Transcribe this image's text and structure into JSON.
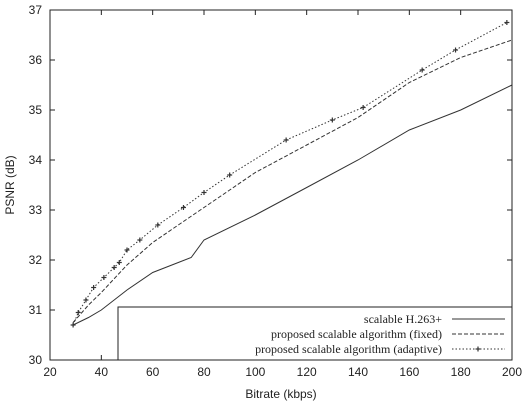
{
  "chart_data": {
    "type": "line",
    "title": "",
    "xlabel": "Bitrate (kbps)",
    "ylabel": "PSNR (dB)",
    "xlim": [
      20,
      200
    ],
    "ylim": [
      30,
      37
    ],
    "xticks": [
      20,
      40,
      60,
      80,
      100,
      120,
      140,
      160,
      180,
      200
    ],
    "yticks": [
      30,
      31,
      32,
      33,
      34,
      35,
      36,
      37
    ],
    "grid": false,
    "legend_position": "bottom-right",
    "series": [
      {
        "name": "scalable H.263+",
        "style": "solid",
        "color": "#333333",
        "x": [
          29,
          35,
          40,
          50,
          60,
          70,
          75,
          80,
          100,
          120,
          140,
          160,
          180,
          200
        ],
        "y": [
          30.7,
          30.85,
          31.0,
          31.4,
          31.75,
          31.95,
          32.05,
          32.4,
          32.9,
          33.45,
          34.0,
          34.6,
          35.0,
          35.5
        ]
      },
      {
        "name": "proposed scalable algorithm (fixed)",
        "style": "dashed",
        "color": "#333333",
        "x": [
          29,
          35,
          40,
          50,
          60,
          70,
          80,
          90,
          100,
          120,
          140,
          160,
          180,
          200
        ],
        "y": [
          30.75,
          31.1,
          31.35,
          31.9,
          32.35,
          32.7,
          33.05,
          33.4,
          33.75,
          34.3,
          34.85,
          35.55,
          36.05,
          36.4
        ]
      },
      {
        "name": "proposed scalable algorithm (adaptive)",
        "style": "dotted-markers",
        "color": "#333333",
        "x": [
          29,
          31,
          34,
          37,
          41,
          45,
          47,
          50,
          55,
          62,
          72,
          80,
          90,
          112,
          130,
          142,
          165,
          178,
          198
        ],
        "y": [
          30.7,
          30.95,
          31.2,
          31.45,
          31.65,
          31.85,
          31.95,
          32.2,
          32.4,
          32.7,
          33.05,
          33.35,
          33.7,
          34.4,
          34.8,
          35.05,
          35.8,
          36.2,
          36.75
        ]
      }
    ]
  }
}
